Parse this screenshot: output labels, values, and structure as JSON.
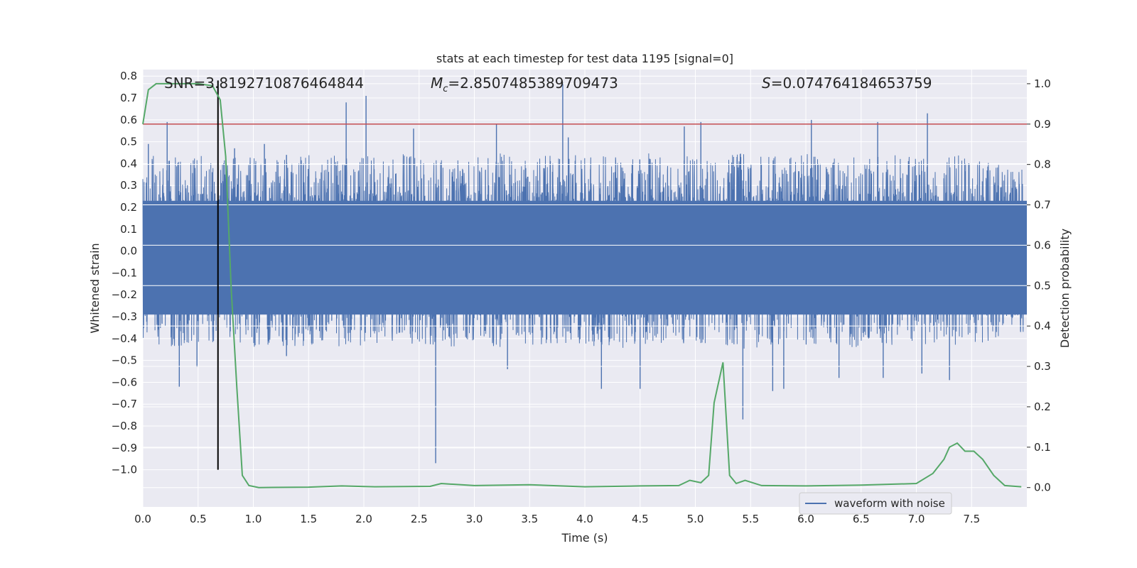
{
  "chart_data": {
    "type": "line",
    "title": "stats at each timestep for test data 1195 [signal=0]",
    "xlabel": "Time (s)",
    "ylabel_left": "Whitened strain",
    "ylabel_right": "Detection probability",
    "xlim": [
      0.0,
      8.0
    ],
    "ylim_left": [
      -1.17,
      0.83
    ],
    "ylim_right": [
      -0.048,
      1.035
    ],
    "xticks": [
      "0.0",
      "0.5",
      "1.0",
      "1.5",
      "2.0",
      "2.5",
      "3.0",
      "3.5",
      "4.0",
      "4.5",
      "5.0",
      "5.5",
      "6.0",
      "6.5",
      "7.0",
      "7.5"
    ],
    "yticks_left": [
      "0.8",
      "0.7",
      "0.6",
      "0.5",
      "0.4",
      "0.3",
      "0.2",
      "0.1",
      "0.0",
      "-0.1",
      "-0.2",
      "-0.3",
      "-0.4",
      "-0.5",
      "-0.6",
      "-0.7",
      "-0.8",
      "-0.9",
      "-1.0"
    ],
    "yticks_right": [
      "1.0",
      "0.9",
      "0.8",
      "0.7",
      "0.6",
      "0.5",
      "0.4",
      "0.3",
      "0.2",
      "0.1",
      "0.0"
    ],
    "grid": true,
    "legend_placement": "lower-right",
    "annotations": {
      "snr": "SNR=3.8192710876464844",
      "mc_symbol": "M",
      "mc_sub": "c",
      "mc_value": "=2.8507485389709473",
      "s_symbol": "S",
      "s_value": "=0.074764184653759"
    },
    "threshold_line": {
      "y_right": 0.9,
      "color": "#c44e52"
    },
    "marker_line": {
      "x": 0.68,
      "y_left_from": -1.0,
      "y_left_to": 0.78,
      "color": "#000000"
    },
    "series": [
      {
        "name": "waveform with noise",
        "axis": "left",
        "color": "#4c72b0",
        "envelope_upper": [
          [
            0.0,
            0.38
          ],
          [
            0.1,
            0.45
          ],
          [
            0.2,
            0.42
          ],
          [
            0.3,
            0.46
          ],
          [
            0.4,
            0.44
          ],
          [
            0.5,
            0.43
          ],
          [
            0.6,
            0.45
          ],
          [
            0.7,
            0.41
          ],
          [
            0.8,
            0.44
          ],
          [
            0.9,
            0.42
          ],
          [
            1.0,
            0.44
          ],
          [
            1.2,
            0.43
          ],
          [
            1.4,
            0.46
          ],
          [
            1.6,
            0.42
          ],
          [
            1.8,
            0.45
          ],
          [
            2.0,
            0.44
          ],
          [
            2.2,
            0.43
          ],
          [
            2.4,
            0.45
          ],
          [
            2.6,
            0.42
          ],
          [
            2.8,
            0.44
          ],
          [
            3.0,
            0.43
          ],
          [
            3.2,
            0.46
          ],
          [
            3.4,
            0.42
          ],
          [
            3.6,
            0.44
          ],
          [
            3.8,
            0.45
          ],
          [
            4.0,
            0.43
          ],
          [
            4.2,
            0.44
          ],
          [
            4.4,
            0.42
          ],
          [
            4.6,
            0.45
          ],
          [
            4.8,
            0.43
          ],
          [
            5.0,
            0.44
          ],
          [
            5.2,
            0.42
          ],
          [
            5.4,
            0.45
          ],
          [
            5.6,
            0.44
          ],
          [
            5.8,
            0.43
          ],
          [
            6.0,
            0.45
          ],
          [
            6.2,
            0.42
          ],
          [
            6.4,
            0.44
          ],
          [
            6.6,
            0.43
          ],
          [
            6.8,
            0.45
          ],
          [
            7.0,
            0.44
          ],
          [
            7.2,
            0.42
          ],
          [
            7.4,
            0.45
          ],
          [
            7.6,
            0.41
          ],
          [
            7.8,
            0.39
          ],
          [
            8.0,
            0.37
          ]
        ],
        "envelope_lower": [
          [
            0.0,
            -0.4
          ],
          [
            0.1,
            -0.44
          ],
          [
            0.2,
            -0.42
          ],
          [
            0.3,
            -0.45
          ],
          [
            0.4,
            -0.43
          ],
          [
            0.5,
            -0.42
          ],
          [
            0.6,
            -0.44
          ],
          [
            0.7,
            -0.41
          ],
          [
            0.8,
            -0.43
          ],
          [
            0.9,
            -0.42
          ],
          [
            1.0,
            -0.44
          ],
          [
            1.2,
            -0.43
          ],
          [
            1.4,
            -0.45
          ],
          [
            1.6,
            -0.42
          ],
          [
            1.8,
            -0.44
          ],
          [
            2.0,
            -0.43
          ],
          [
            2.2,
            -0.42
          ],
          [
            2.4,
            -0.44
          ],
          [
            2.6,
            -0.43
          ],
          [
            2.8,
            -0.44
          ],
          [
            3.0,
            -0.42
          ],
          [
            3.2,
            -0.45
          ],
          [
            3.4,
            -0.43
          ],
          [
            3.6,
            -0.44
          ],
          [
            3.8,
            -0.42
          ],
          [
            4.0,
            -0.44
          ],
          [
            4.2,
            -0.43
          ],
          [
            4.4,
            -0.45
          ],
          [
            4.6,
            -0.42
          ],
          [
            4.8,
            -0.44
          ],
          [
            5.0,
            -0.43
          ],
          [
            5.2,
            -0.42
          ],
          [
            5.4,
            -0.45
          ],
          [
            5.6,
            -0.44
          ],
          [
            5.8,
            -0.43
          ],
          [
            6.0,
            -0.44
          ],
          [
            6.2,
            -0.42
          ],
          [
            6.4,
            -0.45
          ],
          [
            6.6,
            -0.43
          ],
          [
            6.8,
            -0.44
          ],
          [
            7.0,
            -0.42
          ],
          [
            7.2,
            -0.44
          ],
          [
            7.4,
            -0.43
          ],
          [
            7.6,
            -0.42
          ],
          [
            7.8,
            -0.4
          ],
          [
            8.0,
            -0.38
          ]
        ],
        "peaks": [
          [
            0.05,
            0.49
          ],
          [
            0.22,
            0.59
          ],
          [
            0.83,
            0.47
          ],
          [
            1.1,
            0.49
          ],
          [
            1.3,
            0.44
          ],
          [
            1.84,
            0.68
          ],
          [
            2.02,
            0.71
          ],
          [
            2.45,
            0.56
          ],
          [
            3.2,
            0.58
          ],
          [
            3.8,
            0.77
          ],
          [
            3.85,
            0.52
          ],
          [
            4.9,
            0.57
          ],
          [
            5.05,
            0.59
          ],
          [
            6.05,
            0.6
          ],
          [
            6.65,
            0.59
          ],
          [
            7.1,
            0.63
          ],
          [
            0.33,
            -0.62
          ],
          [
            0.49,
            -0.53
          ],
          [
            1.3,
            -0.48
          ],
          [
            2.65,
            -0.97
          ],
          [
            3.3,
            -0.54
          ],
          [
            4.15,
            -0.63
          ],
          [
            4.5,
            -0.63
          ],
          [
            5.43,
            -0.77
          ],
          [
            5.7,
            -0.64
          ],
          [
            5.8,
            -0.63
          ],
          [
            6.3,
            -0.58
          ],
          [
            6.7,
            -0.58
          ],
          [
            7.05,
            -0.56
          ],
          [
            7.3,
            -0.59
          ]
        ]
      },
      {
        "name": "detection probability",
        "axis": "right",
        "color": "#55a868",
        "points": [
          [
            0.0,
            0.9
          ],
          [
            0.05,
            0.985
          ],
          [
            0.12,
            1.0
          ],
          [
            0.25,
            1.0
          ],
          [
            0.4,
            1.0
          ],
          [
            0.5,
            1.0
          ],
          [
            0.63,
            0.995
          ],
          [
            0.7,
            0.96
          ],
          [
            0.75,
            0.82
          ],
          [
            0.8,
            0.49
          ],
          [
            0.85,
            0.25
          ],
          [
            0.9,
            0.03
          ],
          [
            0.96,
            0.005
          ],
          [
            1.05,
            0.0
          ],
          [
            1.5,
            0.001
          ],
          [
            1.8,
            0.004
          ],
          [
            2.1,
            0.002
          ],
          [
            2.6,
            0.003
          ],
          [
            2.7,
            0.01
          ],
          [
            3.0,
            0.005
          ],
          [
            3.5,
            0.007
          ],
          [
            4.0,
            0.002
          ],
          [
            4.5,
            0.004
          ],
          [
            4.85,
            0.005
          ],
          [
            4.95,
            0.018
          ],
          [
            5.05,
            0.012
          ],
          [
            5.12,
            0.03
          ],
          [
            5.17,
            0.21
          ],
          [
            5.25,
            0.31
          ],
          [
            5.31,
            0.03
          ],
          [
            5.37,
            0.01
          ],
          [
            5.45,
            0.018
          ],
          [
            5.6,
            0.005
          ],
          [
            6.0,
            0.004
          ],
          [
            6.5,
            0.006
          ],
          [
            7.0,
            0.01
          ],
          [
            7.15,
            0.035
          ],
          [
            7.25,
            0.07
          ],
          [
            7.3,
            0.1
          ],
          [
            7.37,
            0.11
          ],
          [
            7.44,
            0.09
          ],
          [
            7.52,
            0.09
          ],
          [
            7.6,
            0.07
          ],
          [
            7.7,
            0.03
          ],
          [
            7.8,
            0.005
          ],
          [
            7.95,
            0.002
          ]
        ]
      }
    ]
  }
}
